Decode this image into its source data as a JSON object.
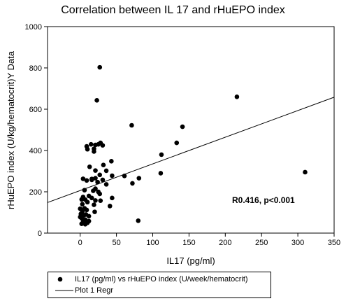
{
  "chart_data": {
    "type": "scatter",
    "title": "Correlation between IL 17 and rHuEPO index",
    "xlabel": "IL17 (pg/ml)",
    "ylabel": "rHuEPO index (U/kg/hematocrit)Y Data",
    "xlim": [
      -45,
      350
    ],
    "ylim": [
      0,
      1000
    ],
    "x_ticks": [
      0,
      50,
      100,
      150,
      200,
      250,
      300,
      350
    ],
    "y_ticks": [
      0,
      200,
      400,
      600,
      800,
      1000
    ],
    "grid": false,
    "annotation": "R0.416, p<0.001",
    "series": [
      {
        "name": "IL17 (pg/ml) vs rHuEPO index (U/week/hematocrit)",
        "marker": "filled-circle",
        "color": "#000000",
        "points": [
          [
            27,
            803
          ],
          [
            23,
            643
          ],
          [
            216,
            660
          ],
          [
            71,
            522
          ],
          [
            141,
            515
          ],
          [
            133,
            437
          ],
          [
            28,
            437
          ],
          [
            25,
            430
          ],
          [
            21,
            427
          ],
          [
            15,
            430
          ],
          [
            31,
            425
          ],
          [
            112,
            380
          ],
          [
            9,
            420
          ],
          [
            19,
            408
          ],
          [
            10,
            406
          ],
          [
            19,
            395
          ],
          [
            43,
            348
          ],
          [
            32,
            330
          ],
          [
            13,
            321
          ],
          [
            21,
            303
          ],
          [
            36,
            302
          ],
          [
            310,
            295
          ],
          [
            111,
            290
          ],
          [
            27,
            282
          ],
          [
            44,
            278
          ],
          [
            61,
            277
          ],
          [
            81,
            266
          ],
          [
            16,
            262
          ],
          [
            21,
            266
          ],
          [
            4,
            263
          ],
          [
            9,
            255
          ],
          [
            16,
            258
          ],
          [
            31,
            258
          ],
          [
            24,
            247
          ],
          [
            72,
            241
          ],
          [
            36,
            236
          ],
          [
            21,
            215
          ],
          [
            6,
            208
          ],
          [
            18,
            205
          ],
          [
            25,
            200
          ],
          [
            27,
            190
          ],
          [
            12,
            180
          ],
          [
            4,
            175
          ],
          [
            16,
            170
          ],
          [
            44,
            170
          ],
          [
            2,
            163
          ],
          [
            7,
            162
          ],
          [
            21,
            158
          ],
          [
            28,
            157
          ],
          [
            10,
            150
          ],
          [
            3,
            140
          ],
          [
            19,
            137
          ],
          [
            41,
            131
          ],
          [
            6,
            120
          ],
          [
            0,
            118
          ],
          [
            9,
            112
          ],
          [
            3,
            105
          ],
          [
            20,
            103
          ],
          [
            1,
            93
          ],
          [
            8,
            90
          ],
          [
            5,
            86
          ],
          [
            12,
            82
          ],
          [
            0,
            78
          ],
          [
            2,
            72
          ],
          [
            7,
            65
          ],
          [
            12,
            58
          ],
          [
            80,
            60
          ],
          [
            4,
            55
          ],
          [
            2,
            45
          ],
          [
            7,
            43
          ],
          [
            10,
            50
          ]
        ]
      }
    ],
    "regression": {
      "name": "Plot 1 Regr",
      "x": [
        -45,
        350
      ],
      "y": [
        148,
        658
      ]
    }
  }
}
